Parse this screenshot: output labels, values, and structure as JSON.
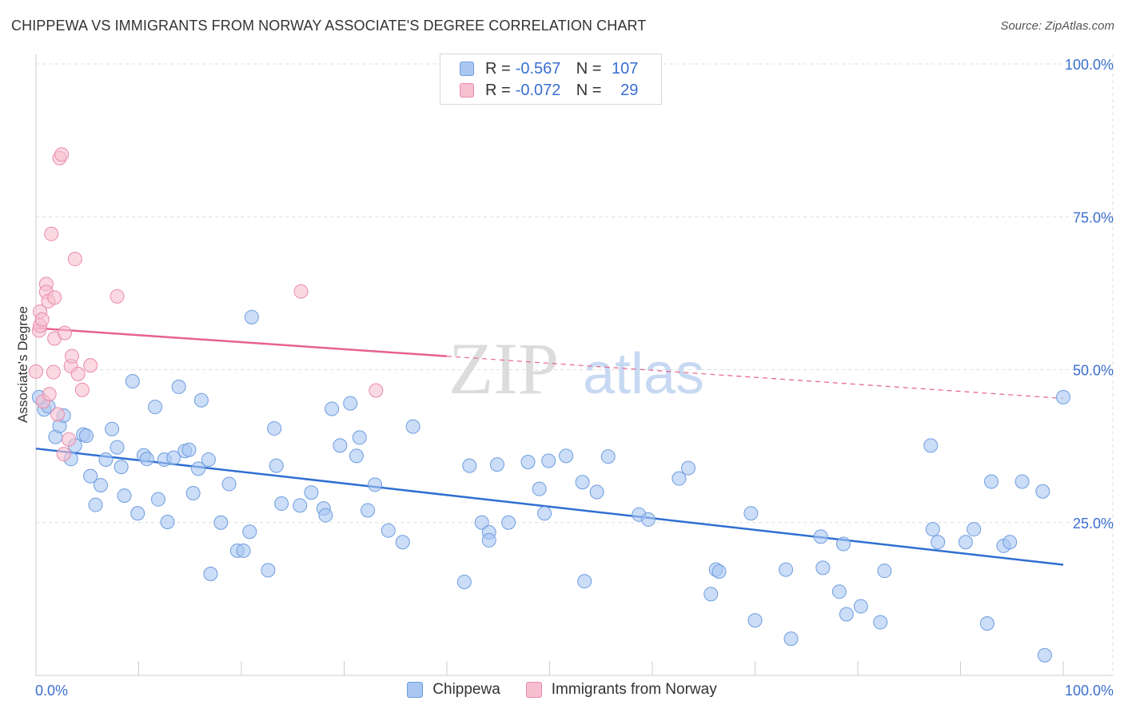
{
  "title": "CHIPPEWA VS IMMIGRANTS FROM NORWAY ASSOCIATE'S DEGREE CORRELATION CHART",
  "source": "Source: ZipAtlas.com",
  "legend": {
    "rows": [
      {
        "r_label": "R =",
        "r_value": "-0.567",
        "n_label": "N =",
        "n_value": "107"
      },
      {
        "r_label": "R =",
        "r_value": "-0.072",
        "n_label": "N =",
        "n_value": "29"
      }
    ]
  },
  "bottom_legend": [
    "Chippewa",
    "Immigrants from Norway"
  ],
  "colors": {
    "chippewa_fill": "#a9c7f2",
    "chippewa_stroke": "#6e9de0",
    "chippewa_line": "#2f6fd1",
    "norway_fill": "#f7bfd0",
    "norway_stroke": "#ea8aa9",
    "norway_line": "#e8628c",
    "axis_text": "#3a6fd0",
    "grid": "#dddddd"
  },
  "chart_data": {
    "type": "scatter",
    "title": "CHIPPEWA VS IMMIGRANTS FROM NORWAY ASSOCIATE'S DEGREE CORRELATION CHART",
    "xlabel": "",
    "ylabel": "Associate's Degree",
    "xlim": [
      0,
      100
    ],
    "ylim": [
      0,
      100
    ],
    "x_tick_labels": [
      "0.0%",
      "100.0%"
    ],
    "y_tick_values": [
      25,
      50,
      75,
      100
    ],
    "y_tick_labels": [
      "25.0%",
      "50.0%",
      "75.0%",
      "100.0%"
    ],
    "watermark": "ZIPatlas",
    "series": [
      {
        "name": "Chippewa",
        "R": -0.567,
        "N": 107,
        "trend": {
          "x0": 0,
          "y0": 37.1,
          "x1": 100,
          "y1": 18.1
        },
        "points": [
          [
            0.3,
            45.5
          ],
          [
            0.8,
            43.5
          ],
          [
            1.2,
            44.0
          ],
          [
            1.9,
            39.0
          ],
          [
            2.3,
            40.8
          ],
          [
            2.7,
            42.5
          ],
          [
            3.4,
            35.4
          ],
          [
            3.8,
            37.6
          ],
          [
            4.6,
            39.4
          ],
          [
            4.9,
            39.2
          ],
          [
            5.3,
            32.6
          ],
          [
            5.8,
            27.9
          ],
          [
            6.3,
            31.1
          ],
          [
            6.8,
            35.3
          ],
          [
            7.4,
            40.3
          ],
          [
            7.9,
            37.3
          ],
          [
            8.3,
            34.1
          ],
          [
            8.6,
            29.4
          ],
          [
            9.4,
            48.1
          ],
          [
            9.9,
            26.5
          ],
          [
            10.5,
            36.0
          ],
          [
            10.8,
            35.4
          ],
          [
            11.6,
            43.9
          ],
          [
            11.9,
            28.8
          ],
          [
            12.5,
            35.3
          ],
          [
            12.8,
            25.1
          ],
          [
            13.4,
            35.6
          ],
          [
            13.9,
            47.2
          ],
          [
            14.5,
            36.7
          ],
          [
            14.9,
            36.9
          ],
          [
            15.3,
            29.8
          ],
          [
            15.8,
            33.8
          ],
          [
            16.1,
            45.0
          ],
          [
            16.8,
            35.3
          ],
          [
            17.0,
            16.6
          ],
          [
            18.0,
            25.0
          ],
          [
            18.8,
            31.3
          ],
          [
            19.6,
            20.4
          ],
          [
            20.2,
            20.4
          ],
          [
            20.8,
            23.5
          ],
          [
            21.0,
            58.6
          ],
          [
            22.6,
            17.2
          ],
          [
            23.2,
            40.4
          ],
          [
            23.4,
            34.3
          ],
          [
            23.9,
            28.1
          ],
          [
            25.7,
            27.8
          ],
          [
            26.8,
            29.9
          ],
          [
            28.0,
            27.3
          ],
          [
            28.2,
            26.2
          ],
          [
            28.8,
            43.6
          ],
          [
            29.6,
            37.6
          ],
          [
            30.6,
            44.5
          ],
          [
            31.2,
            35.9
          ],
          [
            31.5,
            38.9
          ],
          [
            32.3,
            27.0
          ],
          [
            33.0,
            31.2
          ],
          [
            34.3,
            23.7
          ],
          [
            35.7,
            21.8
          ],
          [
            36.7,
            40.7
          ],
          [
            41.7,
            15.3
          ],
          [
            42.2,
            34.3
          ],
          [
            43.4,
            25.0
          ],
          [
            44.1,
            23.4
          ],
          [
            44.1,
            22.1
          ],
          [
            44.9,
            34.5
          ],
          [
            46.0,
            25.0
          ],
          [
            47.9,
            34.9
          ],
          [
            49.0,
            30.5
          ],
          [
            49.5,
            26.5
          ],
          [
            49.9,
            35.1
          ],
          [
            51.6,
            35.9
          ],
          [
            53.2,
            31.6
          ],
          [
            53.4,
            15.4
          ],
          [
            54.6,
            30.0
          ],
          [
            55.7,
            35.8
          ],
          [
            58.7,
            26.3
          ],
          [
            59.6,
            25.5
          ],
          [
            62.6,
            32.2
          ],
          [
            63.5,
            33.9
          ],
          [
            65.7,
            13.3
          ],
          [
            66.2,
            17.3
          ],
          [
            66.5,
            17.0
          ],
          [
            69.6,
            26.5
          ],
          [
            70.0,
            9.0
          ],
          [
            73.0,
            17.3
          ],
          [
            73.5,
            6.0
          ],
          [
            76.4,
            22.7
          ],
          [
            76.6,
            17.6
          ],
          [
            78.2,
            13.7
          ],
          [
            78.6,
            21.5
          ],
          [
            78.9,
            10.0
          ],
          [
            80.3,
            11.3
          ],
          [
            82.2,
            8.7
          ],
          [
            82.6,
            17.1
          ],
          [
            87.1,
            37.6
          ],
          [
            87.3,
            23.9
          ],
          [
            87.8,
            21.8
          ],
          [
            90.5,
            21.8
          ],
          [
            91.3,
            23.9
          ],
          [
            92.6,
            8.5
          ],
          [
            93.0,
            31.7
          ],
          [
            94.2,
            21.2
          ],
          [
            94.8,
            21.8
          ],
          [
            96.0,
            31.7
          ],
          [
            98.0,
            30.1
          ],
          [
            100.0,
            45.5
          ],
          [
            98.2,
            3.3
          ]
        ]
      },
      {
        "name": "Immigrants from Norway",
        "R": -0.072,
        "N": 29,
        "trend": {
          "x0": 0,
          "y0": 56.8,
          "x1": 40,
          "y1": 52.2
        },
        "trend_dashed": {
          "x0": 40,
          "y0": 52.2,
          "x1": 100,
          "y1": 45.3
        },
        "points": [
          [
            0.0,
            49.7
          ],
          [
            0.3,
            56.4
          ],
          [
            0.4,
            57.2
          ],
          [
            0.4,
            59.5
          ],
          [
            0.6,
            58.2
          ],
          [
            0.7,
            44.8
          ],
          [
            1.0,
            64.0
          ],
          [
            1.0,
            62.7
          ],
          [
            1.2,
            61.2
          ],
          [
            1.3,
            46.0
          ],
          [
            1.5,
            72.2
          ],
          [
            1.7,
            49.6
          ],
          [
            1.8,
            55.1
          ],
          [
            1.8,
            61.8
          ],
          [
            2.1,
            42.7
          ],
          [
            2.3,
            84.6
          ],
          [
            2.5,
            85.2
          ],
          [
            2.7,
            36.2
          ],
          [
            2.8,
            56.0
          ],
          [
            3.2,
            38.6
          ],
          [
            3.4,
            50.6
          ],
          [
            3.5,
            52.2
          ],
          [
            3.8,
            68.1
          ],
          [
            4.1,
            49.3
          ],
          [
            4.5,
            46.7
          ],
          [
            5.3,
            50.7
          ],
          [
            7.9,
            62.0
          ],
          [
            25.8,
            62.8
          ],
          [
            33.1,
            46.6
          ]
        ]
      }
    ]
  }
}
